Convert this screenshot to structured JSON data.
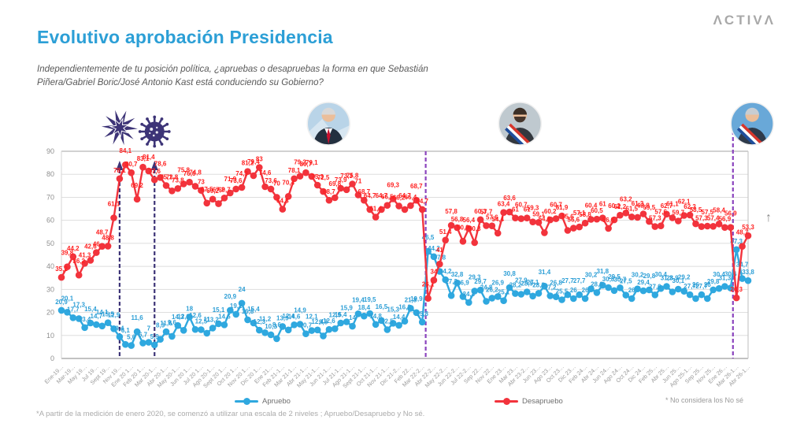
{
  "logo": {
    "text": "ΛCTIVΛ"
  },
  "header": {
    "title": "Evolutivo aprobación Presidencia",
    "subtitle": "Independientemente de tu posición política, ¿apruebas o desapruebas la forma en que Sebastián Piñera/Gabriel Boric/José Antonio Kast está conduciendo su Gobierno?"
  },
  "chart_data": {
    "type": "line",
    "title": "",
    "xlabel": "",
    "ylabel": "",
    "ylim": [
      0,
      90
    ],
    "y_ticks": [
      0,
      10,
      20,
      30,
      40,
      50,
      60,
      70,
      80,
      90
    ],
    "grid": true,
    "legend_position": "bottom",
    "x_tick_labels": [
      "Ene-19…",
      "Mar-19…",
      "May 19…",
      "Jul 19…",
      "Sept 19…",
      "Nov 19…",
      "Ene 20 1…",
      "Feb 20 1…",
      "Mar 20-1…",
      "Abr 20-1…",
      "May 20-1…",
      "Jun 20 1…",
      "Jul 20 1…",
      "Ago 20-1…",
      "Sept 20 1…",
      "Oct 20 1…",
      "Nov 20 1…",
      "Dic 20 1…",
      "Ene 21…",
      "Feb 21-1…",
      "Mar 21-1…",
      "Abr 21-1…",
      "May 21-1…",
      "Jun 21-1…",
      "Jul 21-1…",
      "Ago 21-1…",
      "Sept 21-1…",
      "Oct 21-1…",
      "Nov 21-1…",
      "Dic 21-2…",
      "Feb 22…",
      "Mar 22-2…",
      "Abr 22-2…",
      "May 22-2…",
      "Jun 22-2…",
      "Jul 22-2…",
      "Sep 22…",
      "Nov 22…",
      "Ene 23…",
      "Mar 23…",
      "Abr 23-2…",
      "Jun 23…",
      "Ago 23…",
      "Oct 23…",
      "Dic 23…",
      "Feb 24…",
      "Abr 24…",
      "Jun 24…",
      "Ago 24…",
      "Oct 24…",
      "Dic 24…",
      "Feb 25…",
      "Abr 25…",
      "Jun 25…",
      "Ago 25-1…",
      "Sep 25…",
      "Nov 25…",
      "Ene 26…",
      "Mar 26-1…",
      "Abr 26-1…"
    ],
    "series": [
      {
        "name": "Apruebo",
        "color": "#2FA8DF",
        "label_color": "#2E9FD6",
        "values": [
          20.9,
          20.1,
          17.7,
          17.3,
          13.4,
          15.4,
          14.7,
          14.1,
          15.5,
          12.9,
          9.4,
          6.1,
          5.6,
          11.6,
          6.7,
          7,
          5.9,
          8.3,
          11.6,
          9.6,
          14.3,
          12.2,
          18,
          12.6,
          12.5,
          11,
          13.2,
          15.1,
          14.6,
          20.9,
          19.2,
          24,
          16.8,
          15.4,
          12.3,
          11.2,
          10.3,
          8.6,
          13.9,
          12.4,
          14.6,
          14.9,
          10.7,
          12.1,
          12.4,
          9.8,
          12.6,
          12.9,
          15.4,
          15.9,
          14,
          19.4,
          18.4,
          19.5,
          14.8,
          16.5,
          12.5,
          15.3,
          14.4,
          16.2,
          21.8,
          19.9,
          15.8,
          46.5,
          44.2,
          37.8,
          34.2,
          27.3,
          32.8,
          26.9,
          24.3,
          29.3,
          29.7,
          24.8,
          26.2,
          26.9,
          25.1,
          30.8,
          28.2,
          27.9,
          28.9,
          27.1,
          28.3,
          31.4,
          27.2,
          26.8,
          25.5,
          27.7,
          26,
          27.7,
          26,
          30.2,
          28.6,
          31.8,
          30.8,
          29.5,
          30.7,
          27.5,
          26,
          30.2,
          29.4,
          29.8,
          27.6,
          30.4,
          31.3,
          28.9,
          30.1,
          29.2,
          27.7,
          26,
          27.7,
          26,
          29.8,
          30.4,
          31.3,
          30.6,
          47.3,
          34.7,
          33.8
        ]
      },
      {
        "name": "Desapruebo",
        "color": "#F2333C",
        "label_color": "#FF1F1F",
        "values": [
          35.2,
          39.8,
          44.2,
          36.2,
          41.3,
          42.6,
          46,
          48.7,
          48.8,
          61.1,
          78.1,
          84.1,
          80.7,
          69.2,
          83.1,
          81.4,
          77.6,
          78.6,
          75.1,
          72.8,
          73.8,
          75.8,
          76.6,
          74.8,
          73,
          67.5,
          69.2,
          67.2,
          69.7,
          71.9,
          73.6,
          74.3,
          81.2,
          79.4,
          83,
          74.6,
          73.6,
          70,
          64.8,
          70.4,
          78.1,
          79.2,
          80.7,
          79.1,
          75.3,
          72.5,
          68.7,
          69.8,
          73.9,
          73.3,
          75.8,
          71,
          68.7,
          64.7,
          61.4,
          64.7,
          66.5,
          69.3,
          66.2,
          64.7,
          66.4,
          68.7,
          64.7,
          26.1,
          34,
          41,
          51.4,
          57.8,
          56.8,
          50.9,
          56.4,
          50.3,
          60.3,
          57.7,
          57.6,
          54.4,
          63.4,
          63.6,
          61,
          60.7,
          61,
          59.3,
          59.1,
          54.6,
          60.2,
          60.7,
          61.9,
          55.6,
          56.6,
          57.1,
          58.8,
          60.4,
          60.5,
          61,
          56.5,
          60.2,
          62.2,
          63.2,
          61.5,
          61.3,
          62.8,
          59.5,
          57.3,
          57.6,
          62.7,
          61.1,
          59.7,
          62.1,
          62.3,
          58.5,
          57.3,
          57.5,
          57.4,
          58.4,
          56.9,
          56.9,
          26.3,
          48.7,
          53.3
        ]
      }
    ],
    "vertical_lines": [
      {
        "index": 10,
        "color": "#3D3477",
        "arrow": true
      },
      {
        "index": 16,
        "color": "#3D3477",
        "arrow": true
      },
      {
        "index": 62.6,
        "color": "#8B44BE",
        "arrow": false
      },
      {
        "index": 115.4,
        "color": "#8B44BE",
        "arrow": false
      }
    ],
    "icons": [
      {
        "type": "starburst",
        "index": 10
      },
      {
        "type": "virus",
        "index": 16
      },
      {
        "type": "pinera",
        "index": 45.9
      },
      {
        "type": "boric",
        "index": 78.8
      },
      {
        "type": "kast",
        "index": 118.7
      }
    ],
    "up_arrow": "↑"
  },
  "legend": {
    "items": [
      {
        "label": "Apruebo"
      },
      {
        "label": "Desapruebo"
      }
    ]
  },
  "notes": {
    "side": "* No considera los No sé",
    "footnote": "*A partir de la medición de enero 2020, se comenzó a utilizar una escala de 2 niveles ; Apruebo/Desapruebo y No sé."
  }
}
